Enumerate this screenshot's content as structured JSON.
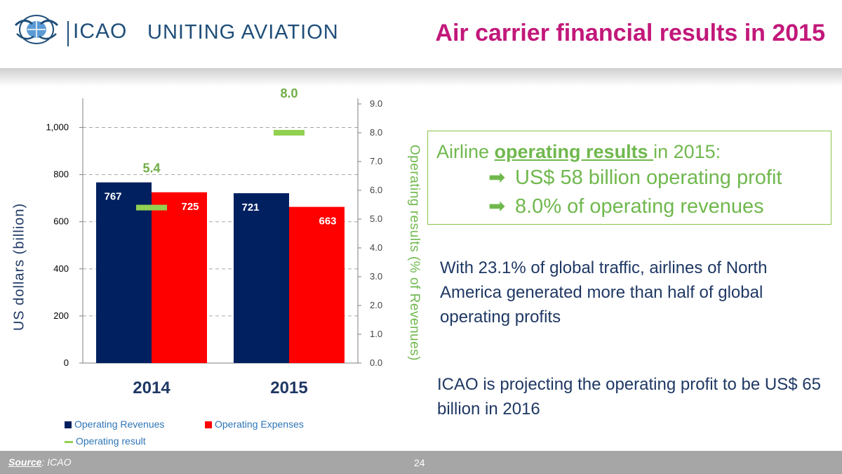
{
  "header": {
    "logo_text": "ICAO",
    "tagline": "UNITING AVIATION",
    "title": "Air carrier financial results in 2015"
  },
  "chart_data": {
    "type": "bar",
    "categories": [
      "2014",
      "2015"
    ],
    "series": [
      {
        "name": "Operating Revenues",
        "type": "bar",
        "axis": "left",
        "values": [
          767,
          721
        ],
        "color": "#002060"
      },
      {
        "name": "Operating Expenses",
        "type": "bar",
        "axis": "left",
        "values": [
          725,
          663
        ],
        "color": "#ff0000"
      },
      {
        "name": "Operating result",
        "type": "marker",
        "axis": "right",
        "values": [
          5.4,
          8.0
        ],
        "labels": [
          "5.4",
          "8.0"
        ],
        "color": "#92d050"
      }
    ],
    "bar_labels": [
      [
        "767",
        "725"
      ],
      [
        "721",
        "663"
      ]
    ],
    "ylabel": "US dollars (billion)",
    "y2label": "Operating results  (% of Revenues)",
    "ylim": [
      0,
      1100
    ],
    "y2lim": [
      0,
      9
    ],
    "yticks": [
      "0",
      "200",
      "400",
      "600",
      "800",
      "1,000"
    ],
    "y2ticks": [
      "0.0",
      "1.0",
      "2.0",
      "3.0",
      "4.0",
      "5.0",
      "6.0",
      "7.0",
      "8.0",
      "9.0"
    ],
    "grid": true,
    "legend_position": "bottom-left"
  },
  "legend": {
    "revenues": "Operating Revenues",
    "expenses": "Operating Expenses",
    "result": "Operating result"
  },
  "box": {
    "line1_prefix": "Airline ",
    "line1_highlight": "operating results ",
    "line1_suffix": "in 2015:",
    "bullet_icon": "right-arrow-icon",
    "bullets": [
      "US$ 58 billion operating profit",
      "8.0% of operating revenues"
    ]
  },
  "paragraphs": [
    "With 23.1% of global traffic, airlines of North America generated more than half of global operating profits",
    "ICAO is projecting the operating profit to be US$ 65 billion in 2016"
  ],
  "footer": {
    "source_label": "Source",
    "source_text": ": ICAO",
    "page_number": "24"
  },
  "colors": {
    "title": "#c2187a",
    "brand": "#1f4e79",
    "accent_green": "#70b84e",
    "navy": "#1f3864"
  }
}
